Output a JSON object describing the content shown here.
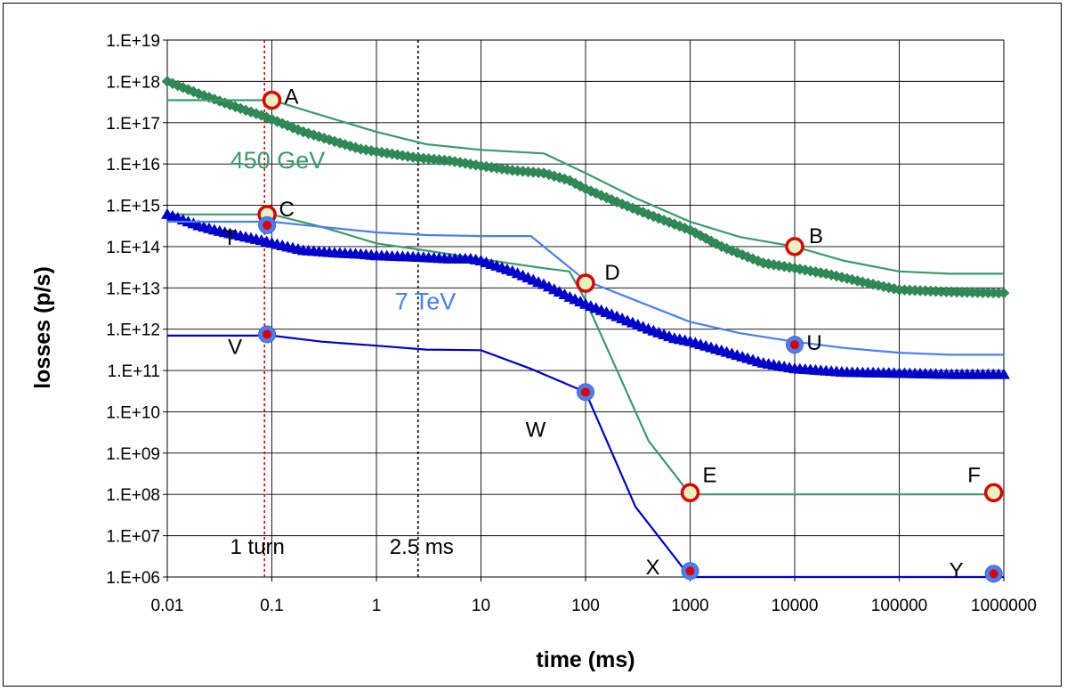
{
  "chart_data": {
    "type": "line",
    "xlabel": "time (ms)",
    "ylabel": "losses (p/s)",
    "xscale": "log",
    "yscale": "log",
    "xlim": [
      0.01,
      1000000
    ],
    "ylim": [
      1000000.0,
      1e+19
    ],
    "grid": true,
    "x_tick_labels": [
      "0.01",
      "0.1",
      "1",
      "10",
      "100",
      "1000",
      "10000",
      "100000",
      "1000000"
    ],
    "y_tick_labels": [
      "1.E+06",
      "1.E+07",
      "1.E+08",
      "1.E+09",
      "1.E+10",
      "1.E+11",
      "1.E+12",
      "1.E+13",
      "1.E+14",
      "1.E+15",
      "1.E+16",
      "1.E+17",
      "1.E+18",
      "1.E+19"
    ],
    "colors": {
      "green": "#2e8b57",
      "lightgreen": "#3a9a6a",
      "blue": "#0000cc",
      "lightblue": "#4a7ff0",
      "red": "#dd0000",
      "marker_fill": "#e6f2c2"
    },
    "series": [
      {
        "style": "diamonds",
        "color": "#2e8b57",
        "x": [
          0.01,
          0.02,
          0.03,
          0.05,
          0.08,
          0.1,
          0.2,
          0.4,
          0.7,
          1,
          2.5,
          5,
          10,
          20,
          40,
          70,
          100,
          200,
          400,
          1000,
          2000,
          5000,
          10000,
          20000,
          50000,
          100000,
          300000,
          1000000
        ],
        "y": [
          1e+18,
          5e+17,
          3.5e+17,
          2.2e+17,
          1.5e+17,
          1.2e+17,
          6e+16,
          3.5e+16,
          2.3e+16,
          2e+16,
          1.4e+16,
          1.2e+16,
          9000000000000000.0,
          7000000000000000.0,
          6000000000000000.0,
          4000000000000000.0,
          2500000000000000.0,
          1200000000000000.0,
          600000000000000.0,
          250000000000000.0,
          100000000000000.0,
          40000000000000.0,
          30000000000000.0,
          22000000000000.0,
          13000000000000.0,
          9000000000000.0,
          8000000000000.0,
          7500000000000.0
        ]
      },
      {
        "style": "line",
        "color": "#3a9a6a",
        "x": [
          0.01,
          0.1,
          0.3,
          1,
          3,
          10,
          40,
          100,
          300,
          1000,
          3000,
          10000,
          30000,
          100000,
          300000,
          1000000
        ],
        "y": [
          3.5e+17,
          3.5e+17,
          1.5e+17,
          6e+16,
          3e+16,
          2.2e+16,
          1.8e+16,
          6000000000000000.0,
          1500000000000000.0,
          400000000000000.0,
          170000000000000.0,
          100000000000000.0,
          45000000000000.0,
          25000000000000.0,
          22000000000000.0,
          22000000000000.0
        ]
      },
      {
        "style": "line",
        "color": "#3a9a6a",
        "x": [
          0.01,
          0.1,
          0.3,
          1,
          3,
          10,
          40,
          70,
          100,
          200,
          400,
          1000,
          1000000
        ],
        "y": [
          600000000000000.0,
          600000000000000.0,
          300000000000000.0,
          120000000000000.0,
          80000000000000.0,
          50000000000000.0,
          30000000000000.0,
          25000000000000.0,
          5000000000000.0,
          100000000000.0,
          2000000000.0,
          100000000.0,
          100000000.0
        ]
      },
      {
        "style": "triangles",
        "color": "#0000cc",
        "x": [
          0.01,
          0.02,
          0.03,
          0.05,
          0.08,
          0.1,
          0.2,
          0.4,
          0.7,
          1,
          2.5,
          5,
          8,
          10,
          20,
          40,
          70,
          100,
          200,
          400,
          700,
          1000,
          2000,
          5000,
          10000,
          30000,
          100000,
          300000,
          1000000
        ],
        "y": [
          600000000000000.0,
          320000000000000.0,
          240000000000000.0,
          180000000000000.0,
          140000000000000.0,
          120000000000000.0,
          80000000000000.0,
          70000000000000.0,
          65000000000000.0,
          60000000000000.0,
          55000000000000.0,
          50000000000000.0,
          50000000000000.0,
          45000000000000.0,
          25000000000000.0,
          12000000000000.0,
          6000000000000.0,
          4000000000000.0,
          2000000000000.0,
          1000000000000.0,
          600000000000.0,
          500000000000.0,
          300000000000.0,
          150000000000.0,
          110000000000.0,
          90000000000.0,
          85000000000.0,
          80000000000.0,
          80000000000.0
        ]
      },
      {
        "style": "line",
        "color": "#4a7ff0",
        "x": [
          0.01,
          0.1,
          0.3,
          1,
          3,
          10,
          30,
          100,
          300,
          1000,
          3000,
          10000,
          30000,
          100000,
          300000,
          1000000
        ],
        "y": [
          400000000000000.0,
          400000000000000.0,
          300000000000000.0,
          220000000000000.0,
          190000000000000.0,
          180000000000000.0,
          180000000000000.0,
          15000000000000.0,
          5000000000000.0,
          1500000000000.0,
          800000000000.0,
          500000000000.0,
          350000000000.0,
          270000000000.0,
          240000000000.0,
          240000000000.0
        ]
      },
      {
        "style": "line",
        "color": "#0000cc",
        "x": [
          0.01,
          0.1,
          0.3,
          1,
          3,
          10,
          30,
          100,
          300,
          1000,
          1000000
        ],
        "y": [
          700000000000.0,
          700000000000.0,
          500000000000.0,
          400000000000.0,
          320000000000.0,
          310000000000.0,
          110000000000.0,
          30000000000.0,
          50000000.0,
          1000000.0,
          1000000.0
        ]
      }
    ],
    "markers": [
      {
        "label": "A",
        "x": 0.1,
        "y": 3.5e+17,
        "kind": "red-ring"
      },
      {
        "label": "B",
        "x": 10000,
        "y": 100000000000000.0,
        "kind": "red-ring"
      },
      {
        "label": "C",
        "x": 0.09,
        "y": 600000000000000.0,
        "kind": "red-ring"
      },
      {
        "label": "D",
        "x": 100,
        "y": 13000000000000.0,
        "kind": "red-ring"
      },
      {
        "label": "E",
        "x": 1000,
        "y": 110000000.0,
        "kind": "red-ring"
      },
      {
        "label": "F",
        "x": 800000,
        "y": 110000000.0,
        "kind": "red-ring"
      },
      {
        "label": "T",
        "x": 0.09,
        "y": 330000000000000.0,
        "kind": "blue-dot"
      },
      {
        "label": "U",
        "x": 10000,
        "y": 420000000000.0,
        "kind": "blue-dot"
      },
      {
        "label": "V",
        "x": 0.09,
        "y": 750000000000.0,
        "kind": "blue-dot"
      },
      {
        "label": "W",
        "x": 100,
        "y": 30000000000.0,
        "kind": "blue-dot"
      },
      {
        "label": "X",
        "x": 1000,
        "y": 1400000.0,
        "kind": "blue-dot"
      },
      {
        "label": "Y",
        "x": 800000,
        "y": 1200000.0,
        "kind": "blue-dot"
      }
    ],
    "vlines": [
      {
        "x": 0.085,
        "color": "#dd0000",
        "label": "1 turn"
      },
      {
        "x": 2.5,
        "color": "#000000",
        "label": "2.5 ms"
      }
    ],
    "series_labels": [
      {
        "text": "450 GeV",
        "x": 0.04,
        "y": 1.3e+16,
        "color": "#3a9a6a"
      },
      {
        "text": "7 TeV",
        "x": 1.5,
        "y": 5000000000000.0,
        "color": "#4a7ff0"
      }
    ]
  }
}
